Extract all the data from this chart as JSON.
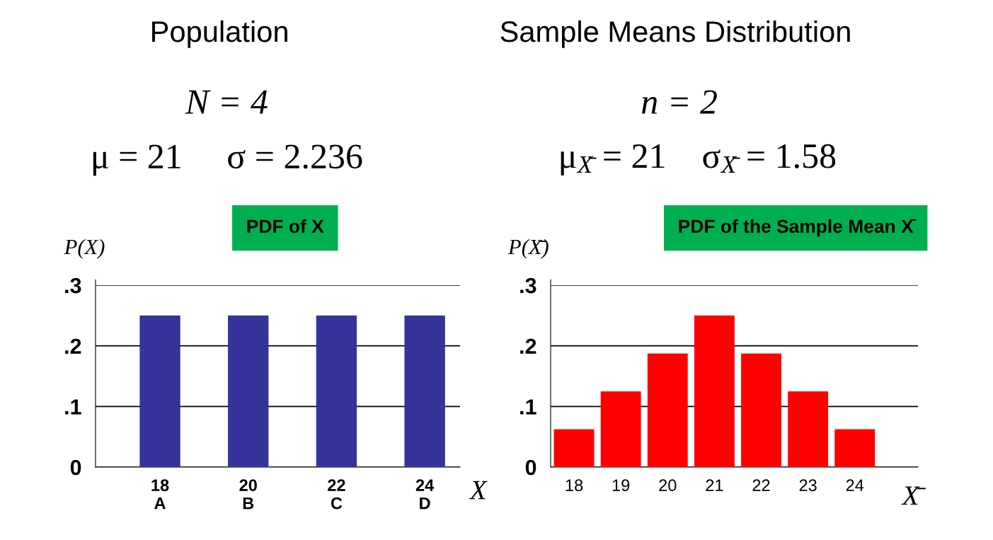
{
  "chart_data": [
    {
      "type": "bar",
      "title": "PDF of X",
      "ylabel": "P(X)",
      "xlabel": "X",
      "categories": [
        "18\nA",
        "20\nB",
        "22\nC",
        "24\nD"
      ],
      "values": [
        0.25,
        0.25,
        0.25,
        0.25
      ],
      "color": "#333399",
      "ylim": [
        0,
        0.3
      ],
      "yticks": [
        {
          "value": 0,
          "label": "0"
        },
        {
          "value": 0.1,
          "label": ".1"
        },
        {
          "value": 0.2,
          "label": ".2"
        },
        {
          "value": 0.3,
          "label": ".3"
        }
      ],
      "grid": "y",
      "annotations": [
        "Population",
        "N = 4",
        "μ = 21     σ = 2.236"
      ]
    },
    {
      "type": "bar",
      "title": "PDF of the Sample Mean X̄",
      "ylabel": "P(X̄)",
      "xlabel": "X̄",
      "categories": [
        "18",
        "19",
        "20",
        "21",
        "22",
        "23",
        "24"
      ],
      "values": [
        0.0625,
        0.125,
        0.1875,
        0.25,
        0.1875,
        0.125,
        0.0625
      ],
      "color": "#ff0000",
      "ylim": [
        0,
        0.3
      ],
      "yticks": [
        {
          "value": 0,
          "label": "0"
        },
        {
          "value": 0.1,
          "label": ".1"
        },
        {
          "value": 0.2,
          "label": ".2"
        },
        {
          "value": 0.3,
          "label": ".3"
        }
      ],
      "grid": "y",
      "annotations": [
        "Sample Means Distribution",
        "n = 2",
        "μ$_{X̄}$ = 21    σ$_{X̄}$ = 1.58"
      ]
    }
  ]
}
